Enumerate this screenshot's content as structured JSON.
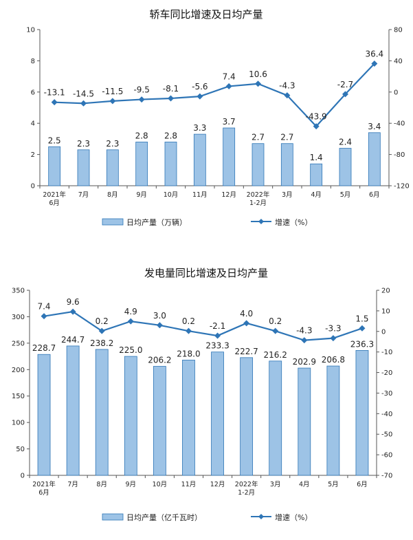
{
  "chart_data": [
    {
      "type": "bar",
      "title": "轿车同比增速及日均产量",
      "categories": [
        "2021年\n6月",
        "7月",
        "8月",
        "9月",
        "10月",
        "11月",
        "12月",
        "2022年\n1-2月",
        "3月",
        "4月",
        "5月",
        "6月"
      ],
      "series": [
        {
          "name": "日均产量（万辆）",
          "type": "bar",
          "axis": "left",
          "values": [
            2.5,
            2.3,
            2.3,
            2.8,
            2.8,
            3.3,
            3.7,
            2.7,
            2.7,
            1.4,
            2.4,
            3.4
          ]
        },
        {
          "name": "增速（%）",
          "type": "line",
          "axis": "right",
          "values": [
            -13.1,
            -14.5,
            -11.5,
            -9.5,
            -8.1,
            -5.6,
            7.4,
            10.6,
            -4.3,
            -43.9,
            -2.7,
            36.4
          ]
        }
      ],
      "ylim_left": [
        0,
        10
      ],
      "yticks_left": [
        0,
        2,
        4,
        6,
        8,
        10
      ],
      "ylim_right": [
        -120,
        80
      ],
      "yticks_right": [
        -120,
        -80,
        -40,
        0,
        40,
        80
      ],
      "grid": false,
      "legend": "bottom",
      "bar_color": "#9dc3e6",
      "line_color": "#2e75b6"
    },
    {
      "type": "bar",
      "title": "发电量同比增速及日均产量",
      "categories": [
        "2021年\n6月",
        "7月",
        "8月",
        "9月",
        "10月",
        "11月",
        "12月",
        "2022年\n1-2月",
        "3月",
        "4月",
        "5月",
        "6月"
      ],
      "series": [
        {
          "name": "日均产量（亿千瓦时）",
          "type": "bar",
          "axis": "left",
          "values": [
            228.7,
            244.7,
            238.2,
            225.0,
            206.2,
            218.0,
            233.3,
            222.7,
            216.2,
            202.9,
            206.8,
            236.3
          ]
        },
        {
          "name": "增速（%）",
          "type": "line",
          "axis": "right",
          "values": [
            7.4,
            9.6,
            0.2,
            4.9,
            3.0,
            0.2,
            -2.1,
            4.0,
            0.2,
            -4.3,
            -3.3,
            1.5
          ]
        }
      ],
      "ylim_left": [
        0,
        350
      ],
      "yticks_left": [
        0,
        50,
        100,
        150,
        200,
        250,
        300,
        350
      ],
      "ylim_right": [
        -70,
        20
      ],
      "yticks_right": [
        -70,
        -60,
        -50,
        -40,
        -30,
        -20,
        -10,
        0,
        10,
        20
      ],
      "grid": false,
      "legend": "bottom",
      "bar_color": "#9dc3e6",
      "line_color": "#2e75b6"
    }
  ]
}
